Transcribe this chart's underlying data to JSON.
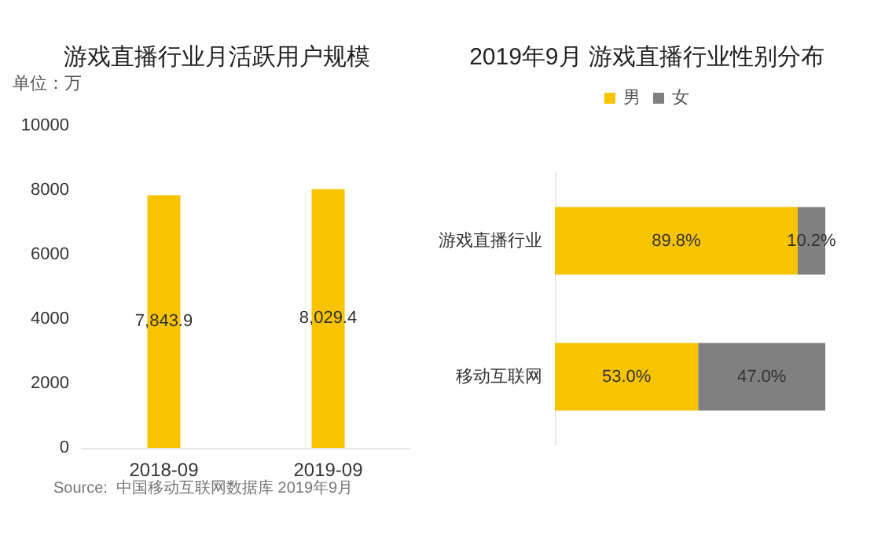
{
  "chart_data": [
    {
      "type": "bar",
      "title": "游戏直播行业月活跃用户规模",
      "ylabel": "单位：万",
      "categories": [
        "2018-09",
        "2019-09"
      ],
      "values": [
        7843.9,
        8029.4
      ],
      "color": "#f8c300",
      "value_labels": [
        "7,843.9",
        "8,029.4"
      ],
      "ylim": [
        0,
        10000
      ],
      "yticks": [
        0,
        2000,
        4000,
        6000,
        8000,
        10000
      ],
      "grid": false,
      "annotations": [
        "Source:  中国移动互联网数据库 2019年9月"
      ]
    },
    {
      "type": "bar",
      "title": "2019年9月 游戏直播行业性别分布",
      "orientation": "horizontal",
      "stacked": true,
      "categories": [
        "游戏直播行业",
        "移动互联网"
      ],
      "legend": "top",
      "tick_labels": "y",
      "series": [
        {
          "name": "男",
          "color": "#f8c300",
          "values": [
            89.8,
            53.0
          ],
          "value_labels": [
            "89.8%",
            "53.0%"
          ]
        },
        {
          "name": "女",
          "color": "#808080",
          "values": [
            10.2,
            47.0
          ],
          "value_labels": [
            "10.2%",
            "47.0%"
          ]
        }
      ]
    }
  ]
}
